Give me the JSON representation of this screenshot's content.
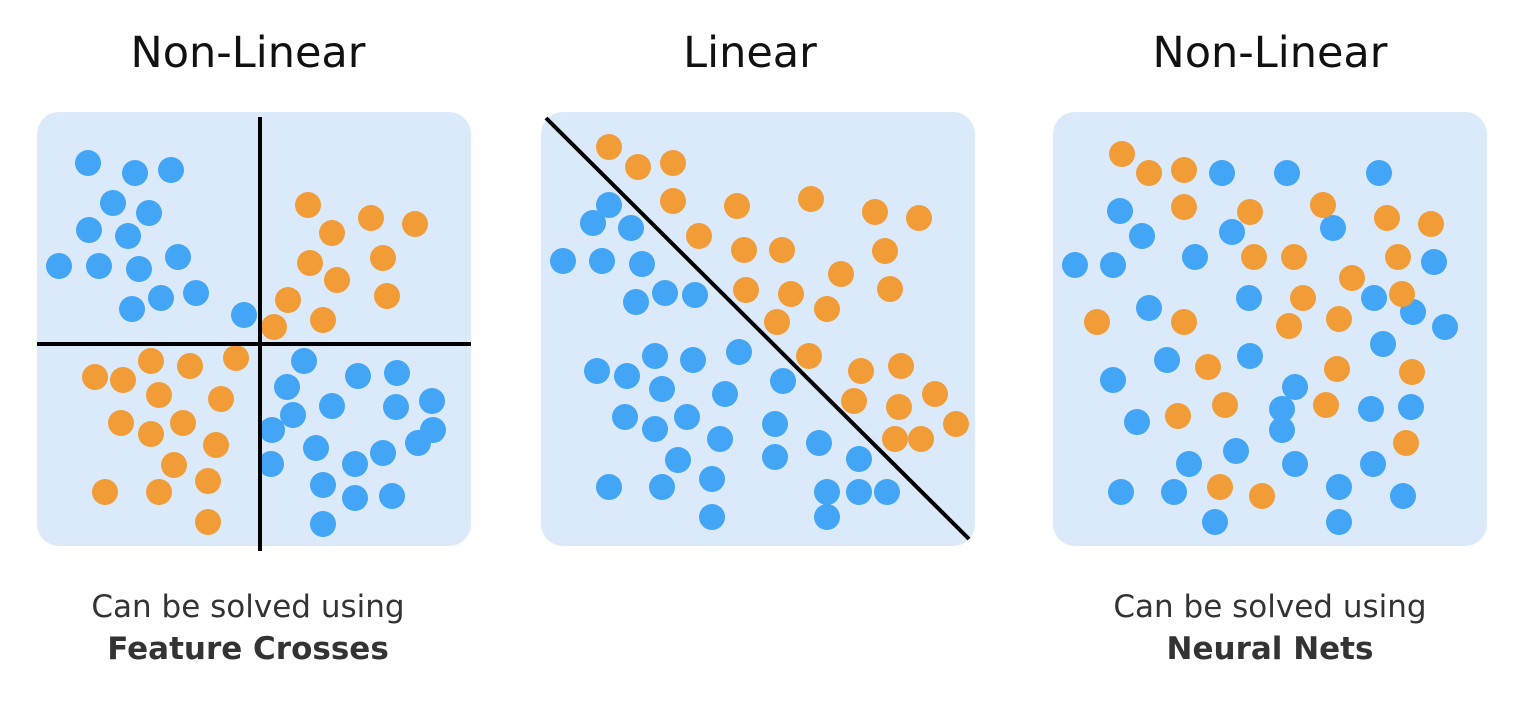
{
  "colors": {
    "panel_bg": "#dbeafb",
    "blue_point": "#42a5f5",
    "orange_point": "#f29c38",
    "boundary_line": "#000000"
  },
  "panels": [
    {
      "title": "Non-Linear",
      "caption_line1": "Can be solved using",
      "caption_line2": "Feature Crosses",
      "boundary": "cross",
      "points": {
        "blue": [
          [
            51,
            51
          ],
          [
            98,
            61
          ],
          [
            134,
            58
          ],
          [
            76,
            91
          ],
          [
            112,
            101
          ],
          [
            52,
            118
          ],
          [
            91,
            124
          ],
          [
            22,
            154
          ],
          [
            62,
            154
          ],
          [
            102,
            157
          ],
          [
            141,
            145
          ],
          [
            95,
            197
          ],
          [
            124,
            186
          ],
          [
            159,
            181
          ],
          [
            207,
            203
          ],
          [
            267,
            249
          ],
          [
            250,
            275
          ],
          [
            321,
            264
          ],
          [
            360,
            261
          ],
          [
            395,
            289
          ],
          [
            256,
            303
          ],
          [
            295,
            294
          ],
          [
            359,
            295
          ],
          [
            396,
            318
          ],
          [
            235,
            318
          ],
          [
            279,
            336
          ],
          [
            381,
            331
          ],
          [
            234,
            352
          ],
          [
            318,
            352
          ],
          [
            346,
            341
          ],
          [
            286,
            373
          ],
          [
            318,
            386
          ],
          [
            355,
            384
          ],
          [
            286,
            412
          ]
        ],
        "orange": [
          [
            271,
            93
          ],
          [
            334,
            106
          ],
          [
            295,
            121
          ],
          [
            378,
            112
          ],
          [
            346,
            146
          ],
          [
            273,
            151
          ],
          [
            300,
            168
          ],
          [
            350,
            184
          ],
          [
            251,
            188
          ],
          [
            286,
            208
          ],
          [
            237,
            215
          ],
          [
            199,
            246
          ],
          [
            114,
            249
          ],
          [
            153,
            254
          ],
          [
            58,
            265
          ],
          [
            86,
            268
          ],
          [
            122,
            283
          ],
          [
            184,
            287
          ],
          [
            84,
            311
          ],
          [
            146,
            311
          ],
          [
            114,
            322
          ],
          [
            179,
            333
          ],
          [
            137,
            353
          ],
          [
            171,
            369
          ],
          [
            68,
            380
          ],
          [
            122,
            380
          ],
          [
            171,
            410
          ]
        ]
      }
    },
    {
      "title": "Linear",
      "caption_line1": "",
      "caption_line2": "",
      "boundary": "diagonal",
      "points": {
        "blue": [
          [
            68,
            93
          ],
          [
            52,
            111
          ],
          [
            90,
            116
          ],
          [
            22,
            149
          ],
          [
            61,
            149
          ],
          [
            101,
            152
          ],
          [
            95,
            190
          ],
          [
            124,
            181
          ],
          [
            154,
            183
          ],
          [
            56,
            259
          ],
          [
            86,
            264
          ],
          [
            114,
            244
          ],
          [
            152,
            248
          ],
          [
            198,
            240
          ],
          [
            121,
            277
          ],
          [
            184,
            282
          ],
          [
            242,
            269
          ],
          [
            84,
            305
          ],
          [
            114,
            317
          ],
          [
            146,
            305
          ],
          [
            179,
            327
          ],
          [
            234,
            312
          ],
          [
            234,
            345
          ],
          [
            278,
            331
          ],
          [
            318,
            347
          ],
          [
            137,
            348
          ],
          [
            68,
            375
          ],
          [
            121,
            375
          ],
          [
            171,
            367
          ],
          [
            286,
            380
          ],
          [
            318,
            380
          ],
          [
            346,
            380
          ],
          [
            171,
            405
          ],
          [
            286,
            405
          ]
        ],
        "orange": [
          [
            68,
            35
          ],
          [
            97,
            55
          ],
          [
            132,
            51
          ],
          [
            132,
            89
          ],
          [
            196,
            94
          ],
          [
            270,
            87
          ],
          [
            334,
            100
          ],
          [
            378,
            106
          ],
          [
            158,
            124
          ],
          [
            203,
            138
          ],
          [
            241,
            138
          ],
          [
            344,
            139
          ],
          [
            300,
            162
          ],
          [
            205,
            178
          ],
          [
            250,
            182
          ],
          [
            349,
            177
          ],
          [
            286,
            197
          ],
          [
            236,
            210
          ],
          [
            268,
            244
          ],
          [
            320,
            259
          ],
          [
            360,
            254
          ],
          [
            313,
            289
          ],
          [
            358,
            295
          ],
          [
            394,
            282
          ],
          [
            354,
            327
          ],
          [
            380,
            327
          ],
          [
            415,
            312
          ]
        ]
      }
    },
    {
      "title": "Non-Linear",
      "caption_line1": "Can be solved using",
      "caption_line2": "Neural Nets",
      "boundary": "none",
      "points": {
        "blue": [
          [
            169,
            61
          ],
          [
            234,
            61
          ],
          [
            326,
            61
          ],
          [
            67,
            99
          ],
          [
            89,
            124
          ],
          [
            179,
            120
          ],
          [
            280,
            116
          ],
          [
            22,
            153
          ],
          [
            60,
            153
          ],
          [
            142,
            145
          ],
          [
            381,
            150
          ],
          [
            196,
            186
          ],
          [
            321,
            186
          ],
          [
            96,
            196
          ],
          [
            360,
            200
          ],
          [
            392,
            215
          ],
          [
            330,
            232
          ],
          [
            114,
            248
          ],
          [
            197,
            244
          ],
          [
            60,
            268
          ],
          [
            242,
            275
          ],
          [
            84,
            310
          ],
          [
            229,
            297
          ],
          [
            318,
            297
          ],
          [
            358,
            295
          ],
          [
            229,
            318
          ],
          [
            183,
            339
          ],
          [
            136,
            352
          ],
          [
            242,
            352
          ],
          [
            320,
            352
          ],
          [
            68,
            380
          ],
          [
            121,
            380
          ],
          [
            286,
            375
          ],
          [
            350,
            384
          ],
          [
            162,
            410
          ],
          [
            286,
            410
          ]
        ],
        "orange": [
          [
            69,
            42
          ],
          [
            96,
            61
          ],
          [
            131,
            58
          ],
          [
            131,
            95
          ],
          [
            197,
            100
          ],
          [
            270,
            93
          ],
          [
            334,
            106
          ],
          [
            378,
            112
          ],
          [
            201,
            145
          ],
          [
            241,
            145
          ],
          [
            345,
            145
          ],
          [
            299,
            166
          ],
          [
            250,
            186
          ],
          [
            349,
            182
          ],
          [
            44,
            210
          ],
          [
            131,
            210
          ],
          [
            286,
            207
          ],
          [
            236,
            214
          ],
          [
            155,
            255
          ],
          [
            284,
            257
          ],
          [
            359,
            260
          ],
          [
            172,
            293
          ],
          [
            273,
            293
          ],
          [
            125,
            304
          ],
          [
            353,
            331
          ],
          [
            167,
            375
          ],
          [
            209,
            384
          ]
        ]
      }
    }
  ]
}
